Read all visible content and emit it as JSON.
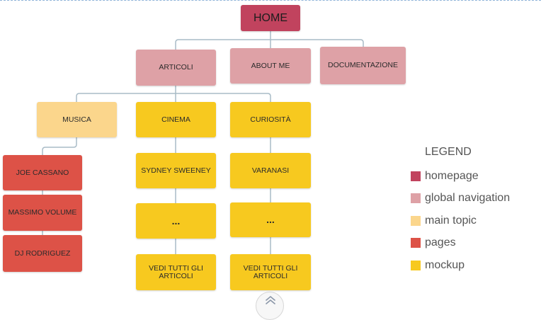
{
  "nodes": {
    "home": "HOME",
    "articoli": "ARTICOLI",
    "about_me": "ABOUT ME",
    "documentazione": "DOCUMENTAZIONE",
    "musica": "MUSICA",
    "cinema": "CINEMA",
    "curiosita": "CURIOSITÀ",
    "joe_cassano": "JOE CASSANO",
    "massimo_volume": "MASSIMO VOLUME",
    "dj_rodriguez": "DJ RODRIGUEZ",
    "sydney_sweeney": "SYDNEY SWEENEY",
    "varanasi": "VARANASI",
    "cinema_more": "...",
    "curiosita_more": "...",
    "cinema_view_all": "VEDI TUTTI GLI ARTICOLI",
    "curiosita_view_all": "VEDI TUTTI GLI ARTICOLI"
  },
  "legend": {
    "title": "LEGEND",
    "items": [
      {
        "label": "homepage",
        "color": "#c1435e"
      },
      {
        "label": "global navigation",
        "color": "#dea1a6"
      },
      {
        "label": "main topic",
        "color": "#fbd68c"
      },
      {
        "label": "pages",
        "color": "#dd5247"
      },
      {
        "label": "mockup",
        "color": "#f7c91f"
      }
    ]
  },
  "colors": {
    "connector": "#a9bcc7"
  },
  "icons": {
    "scroll": "chevron-up-icon"
  }
}
